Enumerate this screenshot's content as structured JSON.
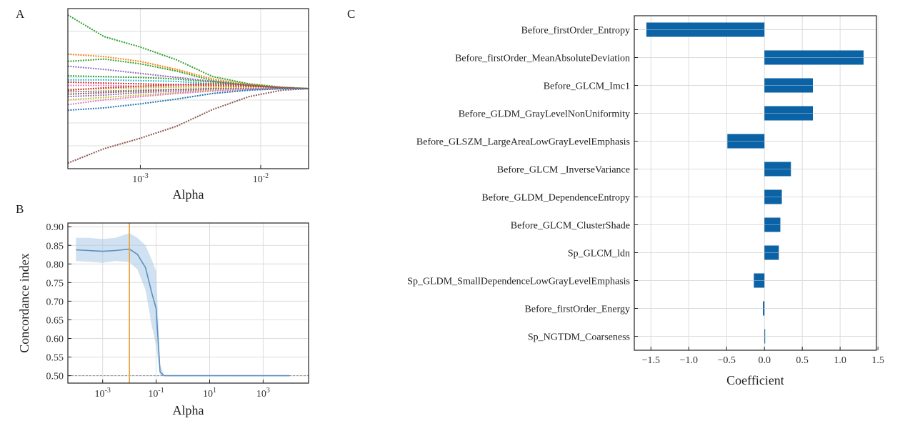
{
  "panels": {
    "a_label": "A",
    "b_label": "B",
    "c_label": "C"
  },
  "chart_data": [
    {
      "panel": "A",
      "type": "line",
      "xlabel": "Alpha",
      "ylabel": "",
      "xscale": "log",
      "xlim": [
        0.00025,
        0.025
      ],
      "ylim": [
        -1.0,
        1.0
      ],
      "x_ticks": [
        "10^-3",
        "10^-2"
      ],
      "x_tick_values": [
        0.001,
        0.01
      ],
      "y_ticks": [],
      "grid": true,
      "x": [
        0.00025,
        0.0005,
        0.001,
        0.002,
        0.004,
        0.008,
        0.015,
        0.025
      ],
      "series": [
        {
          "color": "#2ca02c",
          "values": [
            0.92,
            0.65,
            0.52,
            0.36,
            0.15,
            0.06,
            0.02,
            0.0
          ]
        },
        {
          "color": "#ff7f0e",
          "values": [
            0.43,
            0.4,
            0.34,
            0.24,
            0.12,
            0.05,
            0.01,
            0.0
          ]
        },
        {
          "color": "#2ca02c",
          "values": [
            0.34,
            0.37,
            0.31,
            0.22,
            0.1,
            0.04,
            0.01,
            0.0
          ]
        },
        {
          "color": "#9467bd",
          "values": [
            0.28,
            0.24,
            0.19,
            0.14,
            0.09,
            0.04,
            0.01,
            0.0
          ]
        },
        {
          "color": "#2ca02c",
          "values": [
            0.16,
            0.15,
            0.14,
            0.12,
            0.08,
            0.04,
            0.01,
            0.0
          ]
        },
        {
          "color": "#17becf",
          "values": [
            0.11,
            0.11,
            0.1,
            0.09,
            0.06,
            0.03,
            0.01,
            0.0
          ]
        },
        {
          "color": "#d62728",
          "values": [
            0.08,
            0.07,
            0.06,
            0.05,
            0.04,
            0.02,
            0.01,
            0.0
          ]
        },
        {
          "color": "#e377c2",
          "values": [
            0.04,
            0.04,
            0.03,
            0.03,
            0.02,
            0.01,
            0.0,
            0.0
          ]
        },
        {
          "color": "#bcbd22",
          "values": [
            -0.01,
            0.0,
            0.01,
            0.02,
            0.02,
            0.01,
            0.0,
            0.0
          ]
        },
        {
          "color": "#7f7f7f",
          "values": [
            -0.04,
            -0.03,
            -0.02,
            -0.01,
            0.0,
            0.0,
            0.0,
            0.0
          ]
        },
        {
          "color": "#8c564b",
          "values": [
            -0.07,
            -0.05,
            -0.03,
            -0.01,
            0.0,
            0.0,
            0.0,
            0.0
          ]
        },
        {
          "color": "#d62728",
          "values": [
            -0.02,
            0.01,
            0.03,
            0.05,
            0.06,
            0.04,
            0.01,
            0.0
          ]
        },
        {
          "color": "#9467bd",
          "values": [
            -0.1,
            -0.08,
            -0.05,
            -0.03,
            -0.01,
            0.0,
            0.0,
            0.0
          ]
        },
        {
          "color": "#bcbd22",
          "values": [
            -0.14,
            -0.11,
            -0.08,
            -0.05,
            -0.02,
            -0.01,
            0.0,
            0.0
          ]
        },
        {
          "color": "#e377c2",
          "values": [
            -0.2,
            -0.14,
            -0.1,
            -0.06,
            -0.03,
            -0.01,
            0.0,
            0.0
          ]
        },
        {
          "color": "#1f77b4",
          "values": [
            -0.27,
            -0.24,
            -0.19,
            -0.13,
            -0.06,
            -0.02,
            0.0,
            0.0
          ]
        },
        {
          "color": "#8c564b",
          "values": [
            -0.93,
            -0.75,
            -0.62,
            -0.47,
            -0.26,
            -0.1,
            -0.02,
            0.0
          ]
        }
      ]
    },
    {
      "panel": "B",
      "type": "line",
      "xlabel": "Alpha",
      "ylabel": "Concordance index",
      "xscale": "log",
      "xlim": [
        5e-05,
        50000
      ],
      "ylim": [
        0.48,
        0.91
      ],
      "x_ticks": [
        "10^-3",
        "10^-1",
        "10^1",
        "10^3"
      ],
      "x_tick_values": [
        0.001,
        0.1,
        10,
        1000
      ],
      "y_ticks": [
        "0.90",
        "0.85",
        "0.80",
        "0.75",
        "0.70",
        "0.65",
        "0.60",
        "0.55",
        "0.50"
      ],
      "y_tick_values": [
        0.9,
        0.85,
        0.8,
        0.75,
        0.7,
        0.65,
        0.6,
        0.55,
        0.5
      ],
      "grid": true,
      "selected_alpha": 0.01,
      "baseline": 0.5,
      "x": [
        0.0001,
        0.0003,
        0.001,
        0.003,
        0.01,
        0.02,
        0.04,
        0.07,
        0.1,
        0.14,
        0.2,
        1,
        10,
        100,
        1000,
        10000
      ],
      "mean": [
        0.838,
        0.836,
        0.834,
        0.836,
        0.84,
        0.826,
        0.79,
        0.72,
        0.68,
        0.51,
        0.5,
        0.5,
        0.5,
        0.5,
        0.5,
        0.5
      ],
      "lower": [
        0.808,
        0.806,
        0.803,
        0.808,
        0.805,
        0.785,
        0.73,
        0.63,
        0.58,
        0.5,
        0.5,
        0.5,
        0.5,
        0.5,
        0.5,
        0.5
      ],
      "upper": [
        0.87,
        0.87,
        0.867,
        0.87,
        0.883,
        0.87,
        0.85,
        0.81,
        0.78,
        0.53,
        0.5,
        0.5,
        0.5,
        0.5,
        0.5,
        0.5
      ]
    },
    {
      "panel": "C",
      "type": "bar",
      "orientation": "horizontal",
      "xlabel": "Coefficient",
      "ylabel": "",
      "xlim": [
        -1.72,
        1.48
      ],
      "x_ticks": [
        "−1.5",
        "−1.0",
        "−0.5",
        "0.0",
        "0.5",
        "1.0",
        "1.5"
      ],
      "x_tick_values": [
        -1.5,
        -1.0,
        -0.5,
        0.0,
        0.5,
        1.0,
        1.5
      ],
      "grid": true,
      "bar_color": "#0b62a4",
      "categories": [
        "Before_firstOrder_Entropy",
        "Before_firstOrder_MeanAbsoluteDeviation",
        "Before_GLCM_Imc1",
        "Before_GLDM_GrayLevelNonUniformity",
        "Before_GLSZM_LargeAreaLowGrayLevelEmphasis",
        "Before_GLCM _InverseVariance",
        "Before_GLDM_DependenceEntropy",
        "Before_GLCM_ClusterShade",
        "Sp_GLCM_ldn",
        "Sp_GLDM_SmallDependenceLowGrayLevelEmphasis",
        "Before_firstOrder_Energy",
        "Sp_NGTDM_Coarseness"
      ],
      "values": [
        -1.56,
        1.31,
        0.64,
        0.64,
        -0.49,
        0.35,
        0.23,
        0.21,
        0.19,
        -0.14,
        -0.02,
        0.003
      ]
    }
  ]
}
